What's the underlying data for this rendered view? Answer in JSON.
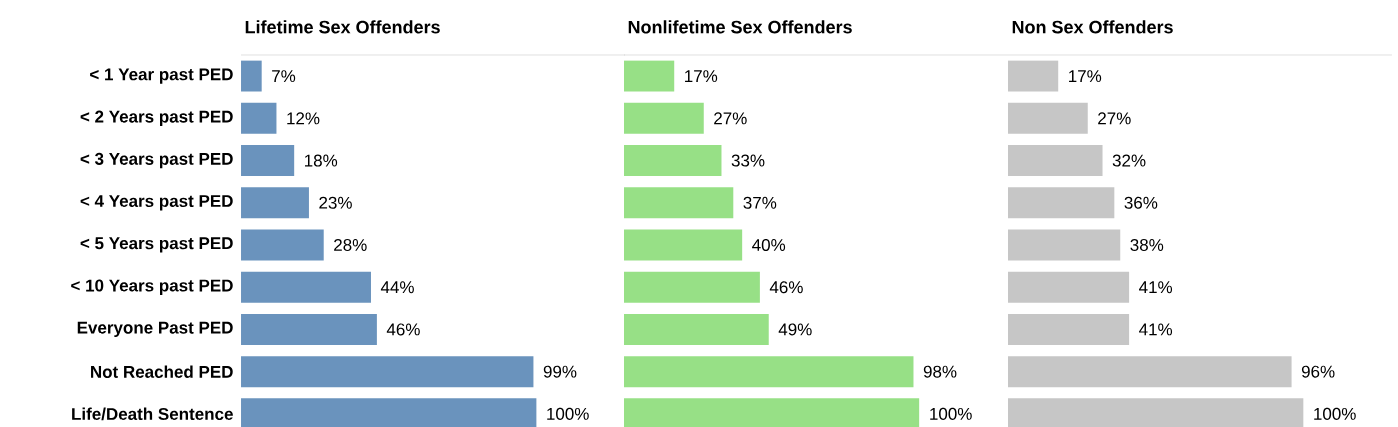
{
  "chart_data": [
    {
      "type": "bar",
      "orientation": "horizontal",
      "title": "Lifetime Sex Offenders",
      "tick_labels": "y",
      "xlim": [
        0,
        130
      ],
      "categories": [
        "< 1 Year past PED",
        "< 2 Years past PED",
        "< 3 Years past PED",
        "< 4 Years past PED",
        "< 5 Years past PED",
        "< 10 Years past PED",
        "Everyone Past PED",
        "Not Reached PED",
        "Life/Death Sentence"
      ],
      "values": [
        7,
        12,
        18,
        23,
        28,
        44,
        46,
        99,
        100
      ],
      "value_labels": [
        "7%",
        "12%",
        "18%",
        "23%",
        "28%",
        "44%",
        "46%",
        "99%",
        "100%"
      ],
      "color": "#6a93bd"
    },
    {
      "type": "bar",
      "orientation": "horizontal",
      "title": "Nonlifetime Sex Offenders",
      "tick_labels": false,
      "xlim": [
        0,
        130
      ],
      "categories": [
        null,
        null,
        null,
        null,
        null,
        null,
        null,
        null,
        null
      ],
      "values": [
        17,
        27,
        33,
        37,
        40,
        46,
        49,
        98,
        100
      ],
      "value_labels": [
        "17%",
        "27%",
        "33%",
        "37%",
        "40%",
        "46%",
        "49%",
        "98%",
        "100%"
      ],
      "color": "#97e086"
    },
    {
      "type": "bar",
      "orientation": "horizontal",
      "title": "Non Sex Offenders",
      "tick_labels": false,
      "xlim": [
        0,
        130
      ],
      "categories": [
        null,
        null,
        null,
        null,
        null,
        null,
        null,
        null,
        null
      ],
      "values": [
        17,
        27,
        32,
        36,
        38,
        41,
        41,
        96,
        100
      ],
      "value_labels": [
        "17%",
        "27%",
        "32%",
        "36%",
        "38%",
        "41%",
        "41%",
        "96%",
        "100%"
      ],
      "color": "#c6c6c6"
    }
  ]
}
